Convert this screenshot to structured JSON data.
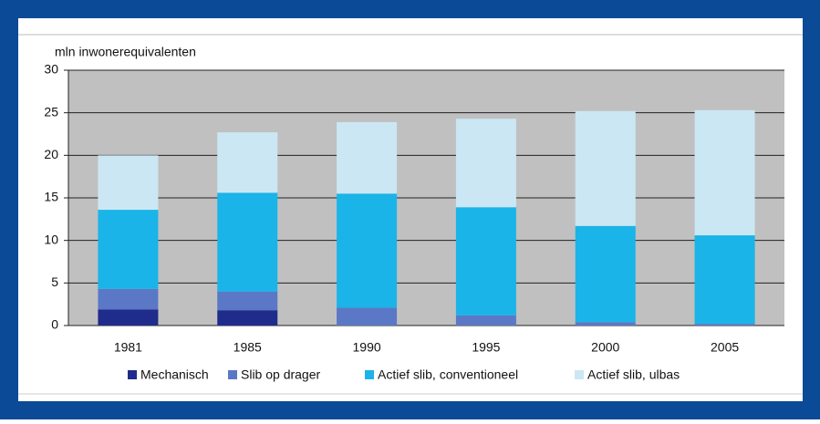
{
  "chart_data": {
    "type": "stacked_bar",
    "ylabel": "mln inwonerequivalenten",
    "categories": [
      "1981",
      "1985",
      "1990",
      "1995",
      "2000",
      "2005"
    ],
    "series": [
      {
        "name": "Mechanisch",
        "color": "#202c8c",
        "values": [
          1.9,
          1.8,
          0,
          0,
          0,
          0
        ]
      },
      {
        "name": "Slib op drager",
        "color": "#5b78c6",
        "values": [
          2.4,
          2.2,
          2.1,
          1.2,
          0.4,
          0.2
        ]
      },
      {
        "name": "Actief slib, conventioneel",
        "color": "#1ab4e8",
        "values": [
          9.3,
          11.6,
          13.4,
          12.7,
          11.3,
          10.4
        ]
      },
      {
        "name": "Actief slib, ulbas",
        "color": "#cbe7f3",
        "values": [
          6.4,
          7.1,
          8.4,
          10.4,
          13.5,
          14.7
        ]
      }
    ],
    "ylim": [
      0,
      30
    ],
    "yticks": [
      0,
      5,
      10,
      15,
      20,
      25,
      30
    ],
    "grid": true,
    "legend": "bottom"
  }
}
